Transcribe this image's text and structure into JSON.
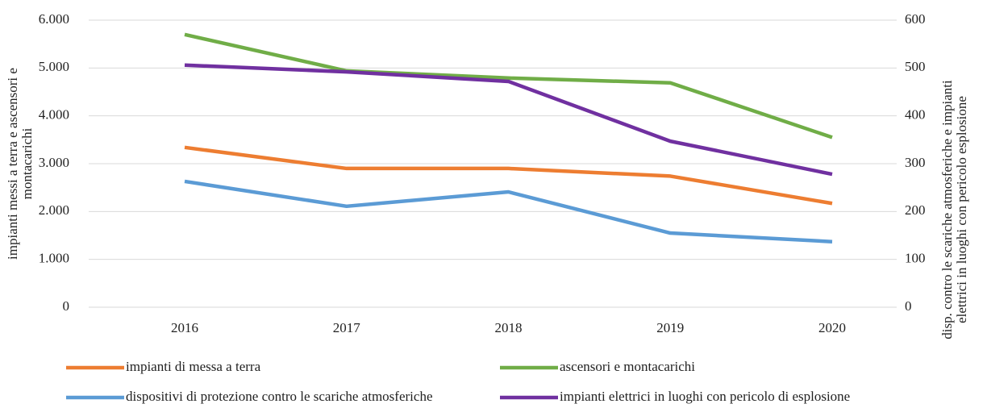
{
  "chart_data": {
    "type": "line",
    "categories": [
      "2016",
      "2017",
      "2018",
      "2019",
      "2020"
    ],
    "series": [
      {
        "name": "impianti di messa a terra",
        "color": "#ed7d31",
        "values": [
          3340,
          2900,
          2900,
          2740,
          2170
        ]
      },
      {
        "name": "ascensori e montacarichi",
        "color": "#70ad47",
        "values": [
          5700,
          4940,
          4790,
          4690,
          3550
        ]
      },
      {
        "name": "dispositivi di protezione contro le scariche atmosferiche",
        "color": "#5b9bd5",
        "axis": "y2",
        "values": [
          263,
          211,
          241,
          155,
          137
        ]
      },
      {
        "name": "impianti elettrici in luoghi con pericolo di esplosione",
        "color": "#7030a0",
        "axis": "y2",
        "values": [
          506,
          492,
          472,
          347,
          278
        ]
      }
    ],
    "ylabel": [
      "impianti messi a terra e ascensori e",
      "montacarichi"
    ],
    "y2label": [
      "disp. contro le scariche atmosferiche e impianti",
      "elettrici in luoghi con pericolo esplosione"
    ],
    "ylim": [
      0,
      6000
    ],
    "yticks": [
      {
        "value": 0,
        "label": "0"
      },
      {
        "value": 1000,
        "label": "1.000"
      },
      {
        "value": 2000,
        "label": "2.000"
      },
      {
        "value": 3000,
        "label": "3.000"
      },
      {
        "value": 4000,
        "label": "4.000"
      },
      {
        "value": 5000,
        "label": "5.000"
      },
      {
        "value": 6000,
        "label": "6.000"
      }
    ],
    "y2lim": [
      0,
      600
    ],
    "y2ticks": [
      0,
      100,
      200,
      300,
      400,
      500,
      600
    ],
    "grid": true,
    "legend": "bottom"
  }
}
